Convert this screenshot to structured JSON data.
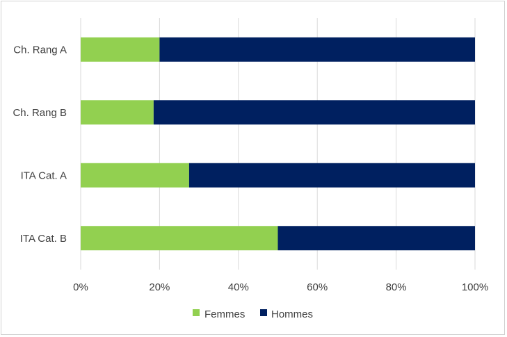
{
  "chart_data": {
    "type": "bar",
    "orientation": "horizontal",
    "stacked": "percent",
    "categories": [
      "Ch. Rang A",
      "Ch. Rang B",
      "ITA Cat. A",
      "ITA Cat. B"
    ],
    "series": [
      {
        "name": "Femmes",
        "values": [
          20,
          18.5,
          27.5,
          50
        ],
        "color": "#92d050"
      },
      {
        "name": "Hommes",
        "values": [
          80,
          81.5,
          72.5,
          50
        ],
        "color": "#002060"
      }
    ],
    "x_ticks": [
      "0%",
      "20%",
      "40%",
      "60%",
      "80%",
      "100%"
    ],
    "xlim": [
      0,
      100
    ],
    "grid": true,
    "legend_position": "bottom"
  }
}
